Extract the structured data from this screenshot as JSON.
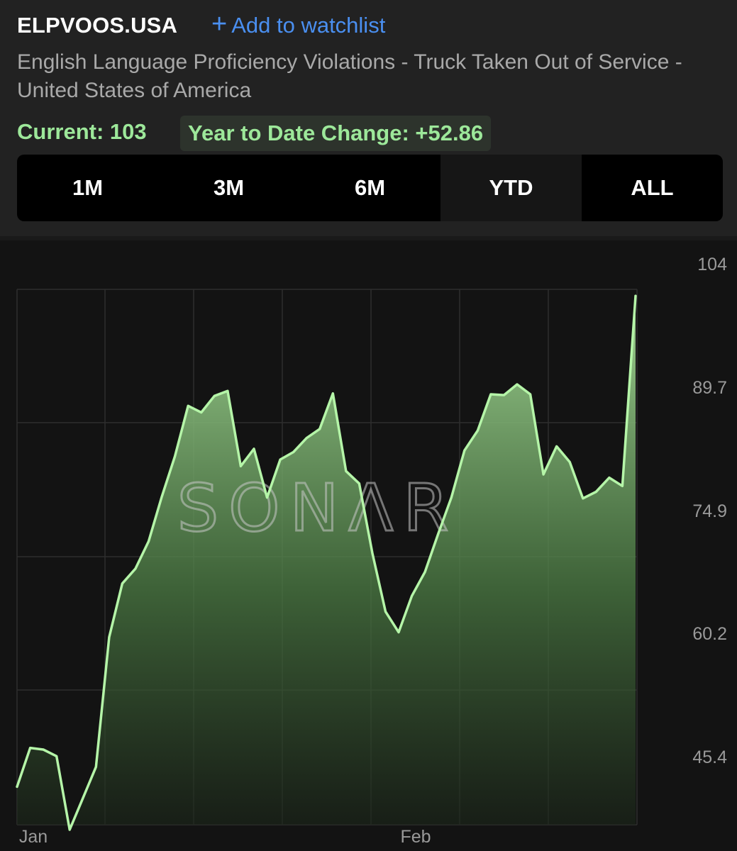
{
  "header": {
    "ticker": "ELPVOOS.USA",
    "watchlist_label": "Add to watchlist",
    "watchlist_icon": "plus-icon",
    "subtitle": "English Language Proficiency Violations - Truck Taken Out of Service - United States of America",
    "current": "Current: 103",
    "ytd_change": "Year to Date Change: +52.86"
  },
  "range_buttons": [
    {
      "label": "1M",
      "active": false
    },
    {
      "label": "3M",
      "active": false
    },
    {
      "label": "6M",
      "active": false
    },
    {
      "label": "YTD",
      "active": true
    },
    {
      "label": "ALL",
      "active": false
    }
  ],
  "watermark": "SONΛR",
  "colors": {
    "accent_green": "#9de89a",
    "link_blue": "#4a8ff0",
    "line": "#b5f5a8"
  },
  "chart_data": {
    "type": "area",
    "x_tick_labels": [
      "Jan",
      "Feb"
    ],
    "y_tick_labels": [
      "104",
      "89.7",
      "74.9",
      "60.2",
      "45.4"
    ],
    "ylim": [
      39.2,
      104
    ],
    "grid": true,
    "series": [
      {
        "values": [
          43.8,
          48.5,
          48.3,
          47.5,
          38.6,
          42.4,
          46.2,
          61.9,
          68.4,
          70.2,
          73.5,
          78.9,
          83.8,
          89.9,
          89.1,
          91.1,
          91.7,
          82.6,
          84.7,
          78.8,
          83.4,
          84.3,
          86.0,
          87.1,
          91.4,
          82.0,
          80.5,
          72.1,
          65.0,
          62.5,
          66.9,
          69.8,
          74.4,
          78.8,
          84.5,
          86.9,
          91.3,
          91.2,
          92.5,
          91.3,
          81.6,
          85.0,
          83.1,
          78.7,
          79.5,
          81.2,
          80.2,
          103.2
        ]
      }
    ]
  }
}
